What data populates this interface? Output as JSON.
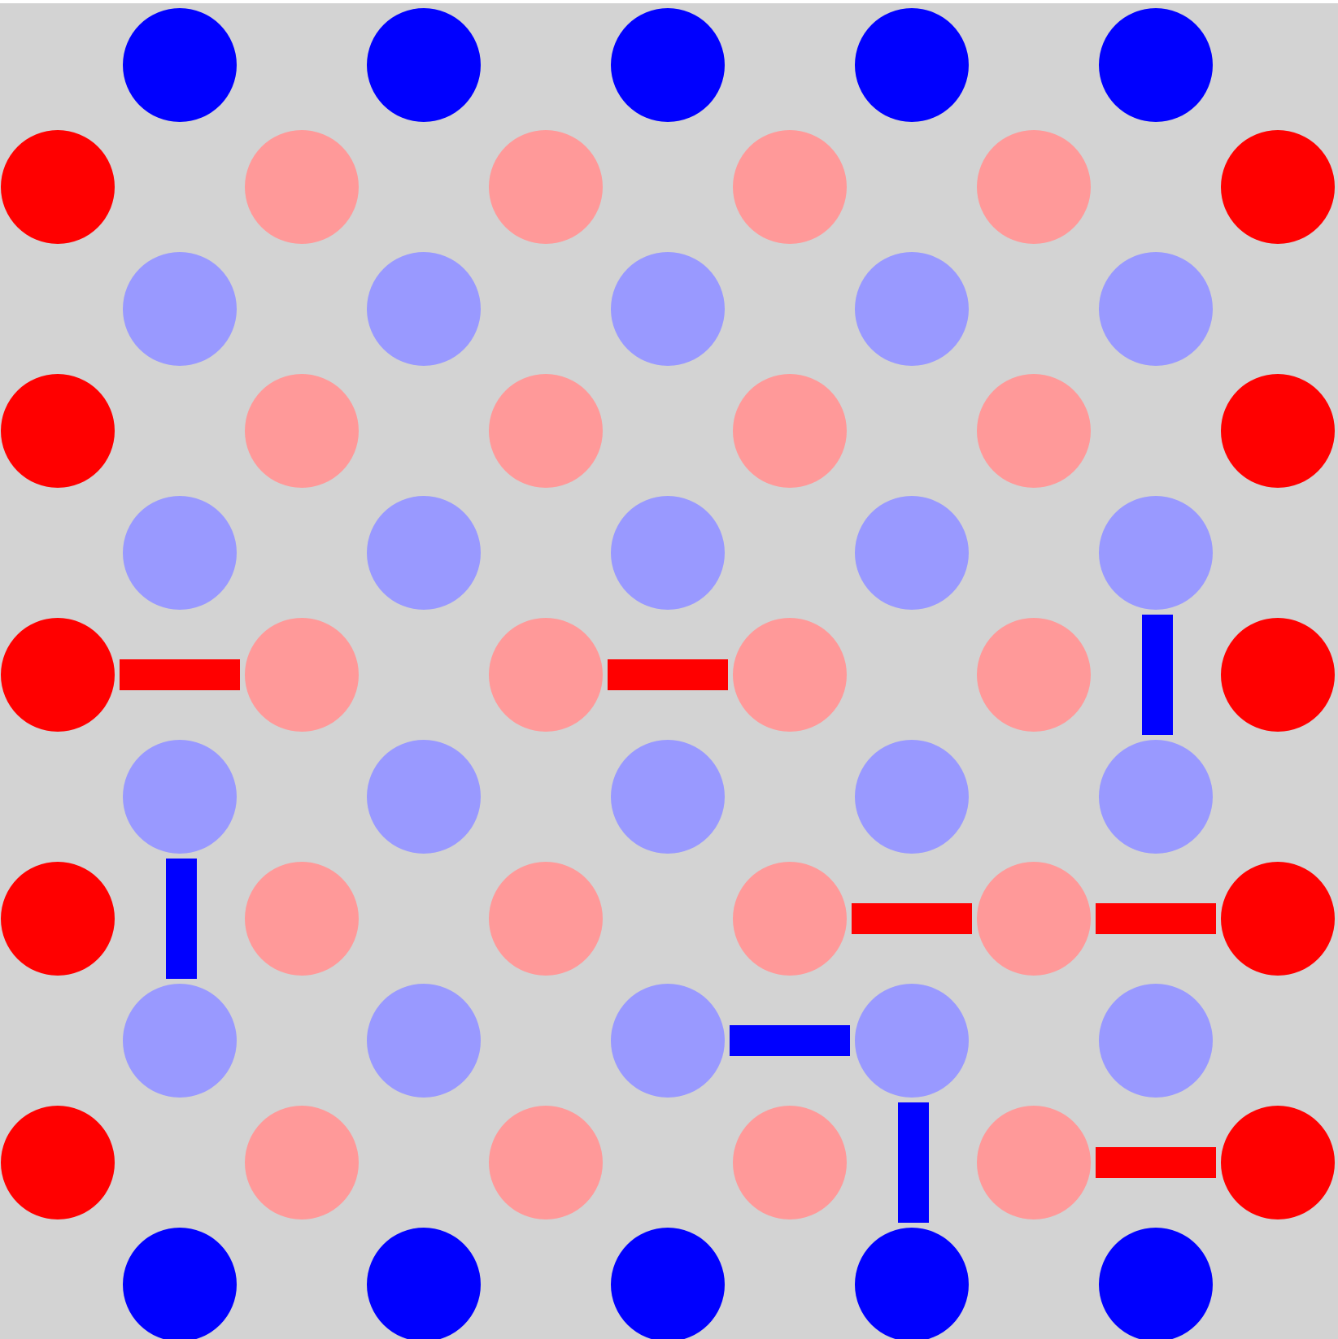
{
  "game": {
    "name": "",
    "rows": 11,
    "cols": 11,
    "colors": {
      "background": "#d3d3d3",
      "border": "#ffffff",
      "blue_terminal": "#0000ff",
      "red_terminal": "#ff0000",
      "blue_dot": "#9999ff",
      "red_dot": "#ff9999",
      "blue_edge": "#0000ff",
      "red_edge": "#ff0000"
    },
    "nodes": [
      {
        "row": 0,
        "col": 1,
        "kind": "blue_terminal"
      },
      {
        "row": 0,
        "col": 3,
        "kind": "blue_terminal"
      },
      {
        "row": 0,
        "col": 5,
        "kind": "blue_terminal"
      },
      {
        "row": 0,
        "col": 7,
        "kind": "blue_terminal"
      },
      {
        "row": 0,
        "col": 9,
        "kind": "blue_terminal"
      },
      {
        "row": 1,
        "col": 0,
        "kind": "red_terminal"
      },
      {
        "row": 1,
        "col": 2,
        "kind": "red_dot"
      },
      {
        "row": 1,
        "col": 4,
        "kind": "red_dot"
      },
      {
        "row": 1,
        "col": 6,
        "kind": "red_dot"
      },
      {
        "row": 1,
        "col": 8,
        "kind": "red_dot"
      },
      {
        "row": 1,
        "col": 10,
        "kind": "red_terminal"
      },
      {
        "row": 2,
        "col": 1,
        "kind": "blue_dot"
      },
      {
        "row": 2,
        "col": 3,
        "kind": "blue_dot"
      },
      {
        "row": 2,
        "col": 5,
        "kind": "blue_dot"
      },
      {
        "row": 2,
        "col": 7,
        "kind": "blue_dot"
      },
      {
        "row": 2,
        "col": 9,
        "kind": "blue_dot"
      },
      {
        "row": 3,
        "col": 0,
        "kind": "red_terminal"
      },
      {
        "row": 3,
        "col": 2,
        "kind": "red_dot"
      },
      {
        "row": 3,
        "col": 4,
        "kind": "red_dot"
      },
      {
        "row": 3,
        "col": 6,
        "kind": "red_dot"
      },
      {
        "row": 3,
        "col": 8,
        "kind": "red_dot"
      },
      {
        "row": 3,
        "col": 10,
        "kind": "red_terminal"
      },
      {
        "row": 4,
        "col": 1,
        "kind": "blue_dot"
      },
      {
        "row": 4,
        "col": 3,
        "kind": "blue_dot"
      },
      {
        "row": 4,
        "col": 5,
        "kind": "blue_dot"
      },
      {
        "row": 4,
        "col": 7,
        "kind": "blue_dot"
      },
      {
        "row": 4,
        "col": 9,
        "kind": "blue_dot"
      },
      {
        "row": 5,
        "col": 0,
        "kind": "red_terminal"
      },
      {
        "row": 5,
        "col": 2,
        "kind": "red_dot"
      },
      {
        "row": 5,
        "col": 4,
        "kind": "red_dot"
      },
      {
        "row": 5,
        "col": 6,
        "kind": "red_dot"
      },
      {
        "row": 5,
        "col": 8,
        "kind": "red_dot"
      },
      {
        "row": 5,
        "col": 10,
        "kind": "red_terminal"
      },
      {
        "row": 6,
        "col": 1,
        "kind": "blue_dot"
      },
      {
        "row": 6,
        "col": 3,
        "kind": "blue_dot"
      },
      {
        "row": 6,
        "col": 5,
        "kind": "blue_dot"
      },
      {
        "row": 6,
        "col": 7,
        "kind": "blue_dot"
      },
      {
        "row": 6,
        "col": 9,
        "kind": "blue_dot"
      },
      {
        "row": 7,
        "col": 0,
        "kind": "red_terminal"
      },
      {
        "row": 7,
        "col": 2,
        "kind": "red_dot"
      },
      {
        "row": 7,
        "col": 4,
        "kind": "red_dot"
      },
      {
        "row": 7,
        "col": 6,
        "kind": "red_dot"
      },
      {
        "row": 7,
        "col": 8,
        "kind": "red_dot"
      },
      {
        "row": 7,
        "col": 10,
        "kind": "red_terminal"
      },
      {
        "row": 8,
        "col": 1,
        "kind": "blue_dot"
      },
      {
        "row": 8,
        "col": 3,
        "kind": "blue_dot"
      },
      {
        "row": 8,
        "col": 5,
        "kind": "blue_dot"
      },
      {
        "row": 8,
        "col": 7,
        "kind": "blue_dot"
      },
      {
        "row": 8,
        "col": 9,
        "kind": "blue_dot"
      },
      {
        "row": 9,
        "col": 0,
        "kind": "red_terminal"
      },
      {
        "row": 9,
        "col": 2,
        "kind": "red_dot"
      },
      {
        "row": 9,
        "col": 4,
        "kind": "red_dot"
      },
      {
        "row": 9,
        "col": 6,
        "kind": "red_dot"
      },
      {
        "row": 9,
        "col": 8,
        "kind": "red_dot"
      },
      {
        "row": 9,
        "col": 10,
        "kind": "red_terminal"
      },
      {
        "row": 10,
        "col": 1,
        "kind": "blue_terminal"
      },
      {
        "row": 10,
        "col": 3,
        "kind": "blue_terminal"
      },
      {
        "row": 10,
        "col": 5,
        "kind": "blue_terminal"
      },
      {
        "row": 10,
        "col": 7,
        "kind": "blue_terminal"
      },
      {
        "row": 10,
        "col": 9,
        "kind": "blue_terminal"
      }
    ],
    "edges": [
      {
        "player": "red",
        "from": [
          5,
          0
        ],
        "to": [
          5,
          2
        ]
      },
      {
        "player": "red",
        "from": [
          5,
          4
        ],
        "to": [
          5,
          6
        ]
      },
      {
        "player": "blue",
        "from": [
          4,
          9
        ],
        "to": [
          6,
          9
        ]
      },
      {
        "player": "blue",
        "from": [
          6,
          1
        ],
        "to": [
          8,
          1
        ]
      },
      {
        "player": "red",
        "from": [
          7,
          6
        ],
        "to": [
          7,
          8
        ]
      },
      {
        "player": "red",
        "from": [
          7,
          8
        ],
        "to": [
          7,
          10
        ]
      },
      {
        "player": "blue",
        "from": [
          8,
          5
        ],
        "to": [
          8,
          7
        ]
      },
      {
        "player": "blue",
        "from": [
          8,
          7
        ],
        "to": [
          10,
          7
        ]
      },
      {
        "player": "red",
        "from": [
          9,
          8
        ],
        "to": [
          9,
          10
        ]
      }
    ]
  }
}
